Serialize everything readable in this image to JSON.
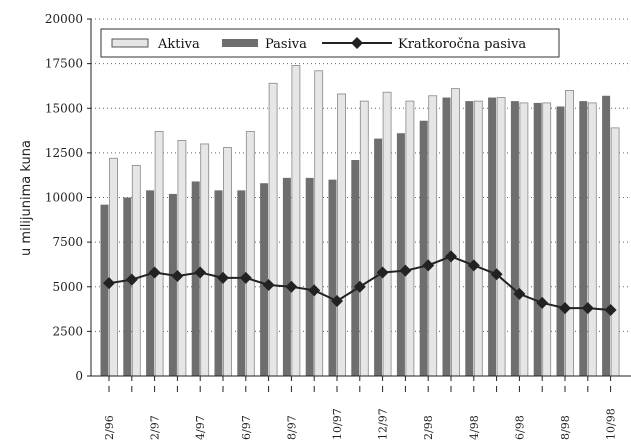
{
  "chart_data": {
    "type": "bar",
    "ylabel": "u milijunima kuna",
    "ylim": [
      0,
      20000
    ],
    "yticks": [
      "20000",
      "17500",
      "15000",
      "12500",
      "10000",
      "7500",
      "5000",
      "2500",
      "0"
    ],
    "ytick_values": [
      20000,
      17500,
      15000,
      12500,
      10000,
      7500,
      5000,
      2500,
      0
    ],
    "grid": "horizontal dotted",
    "legend_position": "top",
    "categories": [
      "2/96",
      "",
      "2/97",
      "",
      "4/97",
      "",
      "6/97",
      "",
      "8/97",
      "",
      "10/97",
      "",
      "12/97",
      "",
      "2/98",
      "",
      "4/98",
      "",
      "6/98",
      "",
      "8/98",
      "",
      "10/98"
    ],
    "series": [
      {
        "name": "Aktiva",
        "kind": "bar",
        "color": "#e6e6e6",
        "values": [
          12200,
          11800,
          13700,
          13200,
          13000,
          12800,
          13700,
          16400,
          17400,
          17100,
          15800,
          15400,
          15900,
          15400,
          15700,
          16100,
          15400,
          15600,
          15300,
          15300,
          16000,
          15300,
          13900
        ]
      },
      {
        "name": "Pasiva",
        "kind": "bar",
        "color": "#6e6e6e",
        "values": [
          9600,
          10000,
          10400,
          10200,
          10900,
          10400,
          10400,
          10800,
          11100,
          11100,
          11000,
          12100,
          13300,
          13600,
          14300,
          15600,
          15400,
          15600,
          15400,
          15300,
          15100,
          15400,
          15700
        ]
      },
      {
        "name": "Kratkoročna pasiva",
        "kind": "line",
        "color": "#222222",
        "values": [
          5200,
          5400,
          5800,
          5600,
          5800,
          5500,
          5500,
          5100,
          5000,
          4800,
          4200,
          5000,
          5800,
          5900,
          6200,
          6700,
          6200,
          5700,
          4600,
          4100,
          3800,
          3800,
          3700
        ]
      }
    ]
  }
}
